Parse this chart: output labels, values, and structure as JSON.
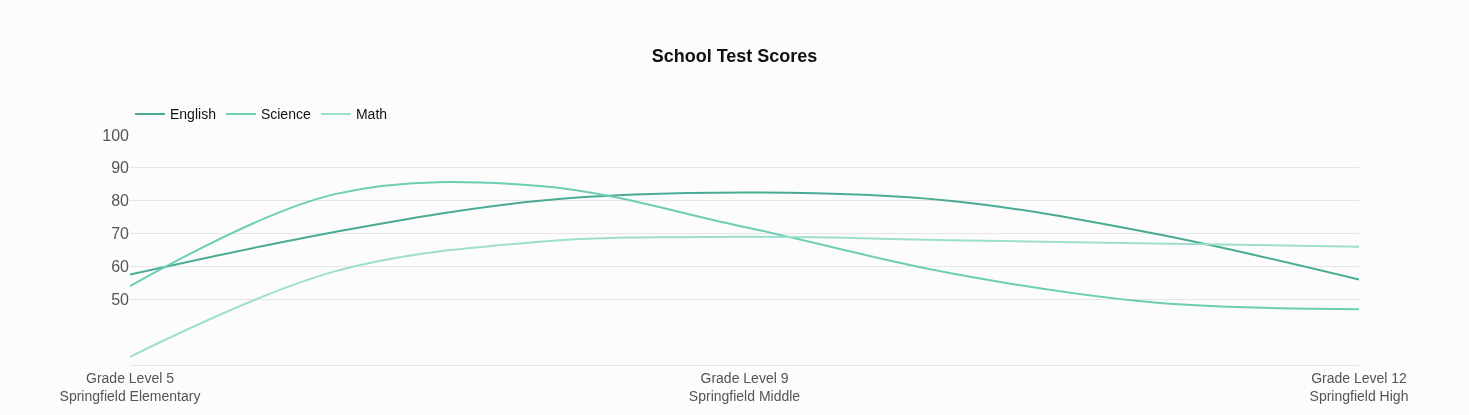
{
  "chart_data": {
    "type": "line",
    "title": "School Test Scores",
    "categories": [
      "Grade Level 5\nSpringfield Elementary",
      null,
      null,
      "Grade Level 9\nSpringfield Middle",
      null,
      null,
      "Grade Level 12\nSpringfield High"
    ],
    "series": [
      {
        "name": "English",
        "color": "#4aab94",
        "values": [
          57.5,
          70.5,
          80,
          82.5,
          80,
          70,
          56
        ]
      },
      {
        "name": "Science",
        "color": "#6dcdb5",
        "values": [
          54,
          82,
          84.5,
          72,
          58,
          49,
          47
        ]
      },
      {
        "name": "Math",
        "color": "#9ddfcc",
        "values": [
          32.5,
          58.5,
          67.5,
          69,
          68,
          67,
          66
        ]
      }
    ],
    "ylim": [
      30,
      100
    ],
    "yticks": [
      50,
      60,
      70,
      80,
      90,
      100
    ],
    "grid": "y",
    "legend": "top left",
    "marker": "none",
    "line_style": "solid"
  }
}
